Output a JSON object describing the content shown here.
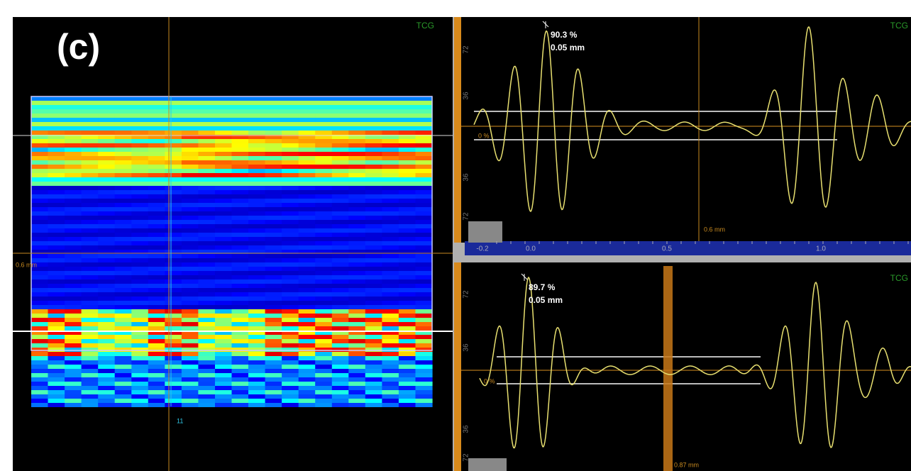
{
  "left_panel": {
    "label": "(c)",
    "mode": "TCG",
    "cursor_label": "0.6 mm",
    "index_label": "11"
  },
  "top_ascan": {
    "mode": "TCG",
    "peak_amplitude": "90.3 %",
    "peak_depth": "0.05 mm",
    "cursor_label": "0.6 mm",
    "zero_label": "0 %",
    "amplitude_ticks": [
      "72",
      "36",
      "36",
      "72"
    ],
    "depth_ticks": [
      "-0.2",
      "0.0",
      "0.5",
      "1.0"
    ]
  },
  "bottom_ascan": {
    "mode": "TCG",
    "peak_amplitude": "89.7 %",
    "peak_depth": "0.05 mm",
    "cursor_label": "0.87 mm",
    "zero_label": "0 %",
    "amplitude_ticks": [
      "72",
      "36",
      "36",
      "72"
    ]
  }
}
